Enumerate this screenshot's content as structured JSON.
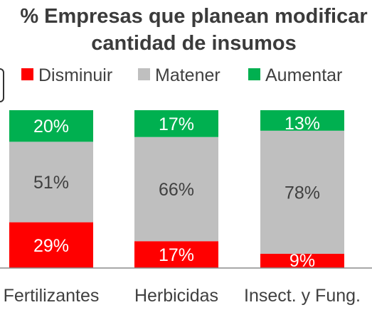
{
  "chart_data": {
    "type": "bar",
    "stacked": true,
    "percent": true,
    "title_lines": [
      "% Empresas que planean modificar",
      "cantidad de insumos"
    ],
    "categories": [
      "Fertilizantes",
      "Herbicidas",
      "Insect. y Fung."
    ],
    "series": [
      {
        "name": "Disminuir",
        "color": "#ff0000",
        "values": [
          29,
          17,
          9
        ]
      },
      {
        "name": "Matener",
        "color": "#bfbfbf",
        "values": [
          51,
          66,
          78
        ]
      },
      {
        "name": "Aumentar",
        "color": "#00b050",
        "values": [
          20,
          17,
          13
        ]
      }
    ],
    "data_labels": [
      [
        "29%",
        "17%",
        "9%"
      ],
      [
        "51%",
        "66%",
        "78%"
      ],
      [
        "20%",
        "17%",
        "13%"
      ]
    ],
    "legend_position": "top",
    "grid": false
  }
}
